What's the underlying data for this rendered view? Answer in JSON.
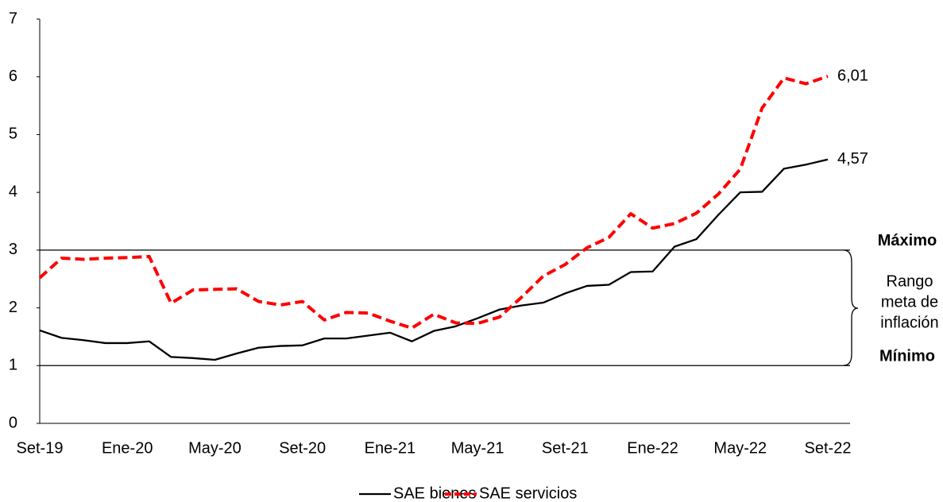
{
  "chart_data": {
    "type": "line",
    "categories": [
      "Set-19",
      null,
      null,
      null,
      "Ene-20",
      null,
      null,
      null,
      "May-20",
      null,
      null,
      null,
      "Set-20",
      null,
      null,
      null,
      "Ene-21",
      null,
      null,
      null,
      "May-21",
      null,
      null,
      null,
      "Set-21",
      null,
      null,
      null,
      "Ene-22",
      null,
      null,
      null,
      "May-22",
      null,
      null,
      null,
      "Set-22"
    ],
    "series": [
      {
        "name": "SAE bienes",
        "color": "#000000",
        "dashed": false,
        "values": [
          1.61,
          1.48,
          1.44,
          1.39,
          1.39,
          1.42,
          1.15,
          1.13,
          1.1,
          1.21,
          1.31,
          1.34,
          1.35,
          1.47,
          1.47,
          1.52,
          1.57,
          1.42,
          1.6,
          1.68,
          1.82,
          1.97,
          2.04,
          2.09,
          2.25,
          2.38,
          2.4,
          2.62,
          2.63,
          3.06,
          3.19,
          3.61,
          4.0,
          4.01,
          4.41,
          4.48,
          4.57
        ],
        "value_labels": [
          null,
          null,
          null,
          null,
          null,
          null,
          null,
          null,
          null,
          null,
          null,
          null,
          null,
          null,
          null,
          null,
          null,
          null,
          null,
          null,
          null,
          null,
          null,
          null,
          null,
          null,
          null,
          null,
          null,
          null,
          null,
          null,
          null,
          null,
          null,
          null,
          "4,57"
        ]
      },
      {
        "name": "SAE servicios",
        "color": "#ff0000",
        "dashed": true,
        "values": [
          2.52,
          2.86,
          2.84,
          2.86,
          2.87,
          2.89,
          2.08,
          2.31,
          2.32,
          2.33,
          2.11,
          2.05,
          2.11,
          1.79,
          1.92,
          1.91,
          1.77,
          1.65,
          1.89,
          1.74,
          1.73,
          1.84,
          2.18,
          2.55,
          2.75,
          3.04,
          3.22,
          3.63,
          3.38,
          3.46,
          3.64,
          3.97,
          4.4,
          5.46,
          5.98,
          5.88,
          6.01
        ],
        "value_labels": [
          null,
          null,
          null,
          null,
          null,
          null,
          null,
          null,
          null,
          null,
          null,
          null,
          null,
          null,
          null,
          null,
          null,
          null,
          null,
          null,
          null,
          null,
          null,
          null,
          null,
          null,
          null,
          null,
          null,
          null,
          null,
          null,
          null,
          null,
          null,
          null,
          "6,01"
        ]
      }
    ],
    "ylim": [
      0,
      7
    ],
    "yticks": [
      0,
      1,
      2,
      3,
      4,
      5,
      6,
      7
    ],
    "reference_lines": [
      {
        "value": 3,
        "label": "Máximo"
      },
      {
        "value": 1,
        "label": "Mínimo"
      }
    ],
    "range_label": [
      "Rango",
      "meta de",
      "inflación"
    ],
    "legend": "bottom"
  }
}
